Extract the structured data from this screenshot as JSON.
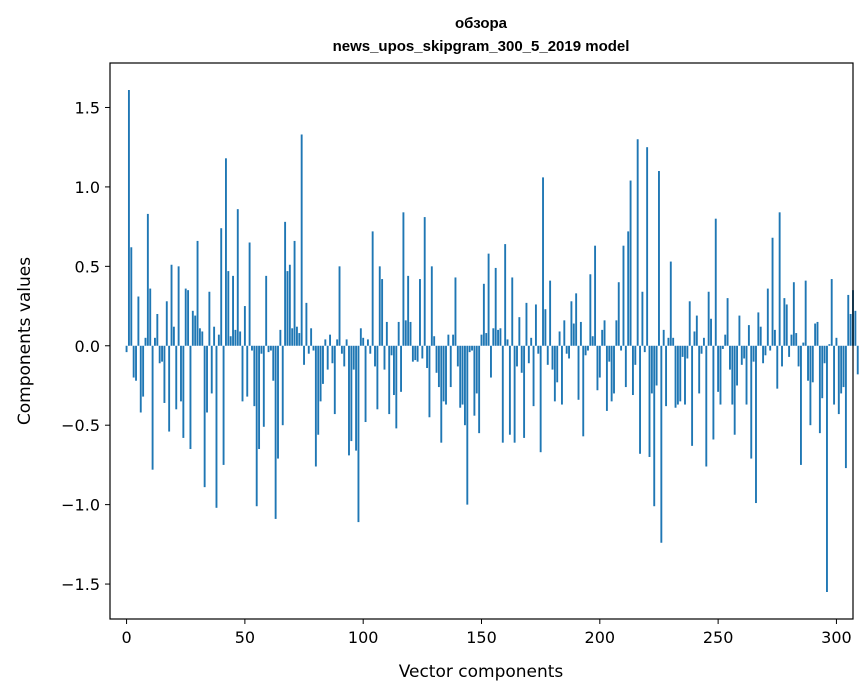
{
  "chart_data": {
    "type": "bar",
    "title": "обзора",
    "subtitle": "news_upos_skipgram_300_5_2019 model",
    "xlabel": "Vector components",
    "ylabel": "Components values",
    "xlim": [
      -7,
      307
    ],
    "ylim": [
      -1.72,
      1.78
    ],
    "xticks": [
      0,
      50,
      100,
      150,
      200,
      250,
      300
    ],
    "xtick_labels": [
      "0",
      "50",
      "100",
      "150",
      "200",
      "250",
      "300"
    ],
    "yticks": [
      -1.5,
      -1.0,
      -0.5,
      0.0,
      0.5,
      1.0,
      1.5
    ],
    "ytick_labels": [
      "−1.5",
      "−1.0",
      "−0.5",
      "0.0",
      "0.5",
      "1.0",
      "1.5"
    ],
    "bar_color": "#1f77b4",
    "values": [
      -0.04,
      1.61,
      0.62,
      -0.2,
      -0.22,
      0.31,
      -0.42,
      -0.32,
      0.05,
      0.83,
      0.36,
      -0.78,
      0.05,
      0.2,
      -0.11,
      -0.1,
      -0.36,
      0.28,
      -0.54,
      0.51,
      0.12,
      -0.4,
      0.5,
      -0.35,
      -0.58,
      0.36,
      0.35,
      -0.65,
      0.22,
      0.19,
      0.66,
      0.11,
      0.09,
      -0.89,
      -0.42,
      0.34,
      -0.3,
      0.12,
      -1.02,
      0.07,
      0.74,
      -0.75,
      1.18,
      0.47,
      0.06,
      0.44,
      0.1,
      0.86,
      0.09,
      -0.35,
      0.25,
      -0.32,
      0.65,
      -0.03,
      -0.38,
      -1.01,
      -0.65,
      -0.05,
      -0.51,
      0.44,
      -0.04,
      -0.03,
      -0.22,
      -1.09,
      -0.71,
      0.1,
      -0.5,
      0.78,
      0.47,
      0.51,
      0.11,
      0.66,
      0.12,
      0.08,
      1.33,
      -0.12,
      0.27,
      -0.05,
      0.11,
      -0.03,
      -0.76,
      -0.56,
      -0.35,
      -0.24,
      0.04,
      -0.15,
      0.07,
      -0.11,
      -0.43,
      0.04,
      0.5,
      -0.05,
      -0.13,
      0.04,
      -0.69,
      -0.6,
      -0.15,
      -0.66,
      -1.11,
      0.11,
      0.05,
      -0.48,
      0.04,
      -0.05,
      0.72,
      -0.13,
      -0.4,
      0.5,
      0.42,
      -0.15,
      0.15,
      -0.43,
      -0.06,
      -0.31,
      -0.52,
      0.15,
      -0.29,
      0.84,
      0.16,
      0.44,
      0.15,
      -0.1,
      -0.09,
      -0.1,
      0.42,
      -0.08,
      0.81,
      -0.14,
      -0.45,
      0.5,
      0.06,
      -0.17,
      -0.26,
      -0.61,
      -0.35,
      -0.37,
      0.07,
      -0.26,
      0.07,
      0.43,
      -0.13,
      -0.39,
      -0.37,
      -0.5,
      -1.0,
      -0.04,
      -0.03,
      -0.44,
      -0.3,
      -0.55,
      0.07,
      0.39,
      0.08,
      0.58,
      -0.2,
      0.11,
      0.49,
      0.1,
      0.11,
      -0.61,
      0.64,
      0.04,
      -0.56,
      0.43,
      -0.61,
      -0.13,
      0.18,
      -0.17,
      -0.58,
      0.27,
      -0.11,
      0.05,
      -0.38,
      0.26,
      -0.05,
      -0.67,
      1.06,
      0.23,
      -0.12,
      0.41,
      -0.15,
      -0.35,
      -0.23,
      0.09,
      -0.37,
      0.16,
      -0.05,
      -0.08,
      0.28,
      0.14,
      0.33,
      -0.34,
      0.15,
      -0.57,
      -0.06,
      -0.03,
      0.45,
      0.06,
      0.63,
      -0.28,
      -0.2,
      0.1,
      0.16,
      -0.41,
      -0.1,
      -0.35,
      -0.3,
      0.16,
      0.4,
      -0.03,
      0.63,
      -0.26,
      0.72,
      1.04,
      -0.31,
      -0.12,
      1.3,
      -0.68,
      0.34,
      -0.04,
      1.25,
      -0.7,
      -0.3,
      -1.01,
      -0.25,
      1.1,
      -1.24,
      0.1,
      -0.38,
      0.05,
      0.53,
      0.05,
      -0.39,
      -0.37,
      -0.35,
      -0.07,
      -0.37,
      -0.08,
      0.28,
      -0.63,
      0.09,
      0.19,
      -0.3,
      -0.05,
      0.05,
      -0.76,
      0.34,
      0.17,
      -0.59,
      0.8,
      -0.29,
      -0.37,
      -0.02,
      0.07,
      0.3,
      -0.15,
      -0.37,
      -0.56,
      -0.25,
      0.19,
      -0.12,
      -0.08,
      -0.37,
      0.13,
      -0.71,
      -0.1,
      -0.99,
      0.21,
      0.12,
      -0.11,
      -0.06,
      0.36,
      -0.03,
      0.68,
      0.1,
      -0.27,
      0.84,
      -0.13,
      0.3,
      0.26,
      -0.07,
      0.07,
      0.4,
      0.08,
      -0.13,
      -0.75,
      0.02,
      0.41,
      -0.22,
      -0.5,
      -0.23,
      0.14,
      0.15,
      -0.55,
      -0.33,
      -0.11,
      -1.55,
      0.01,
      0.42,
      -0.37,
      0.05,
      -0.43,
      -0.3,
      -0.26,
      -0.77,
      0.32,
      0.2,
      0.35,
      0.22,
      -0.18
    ]
  }
}
